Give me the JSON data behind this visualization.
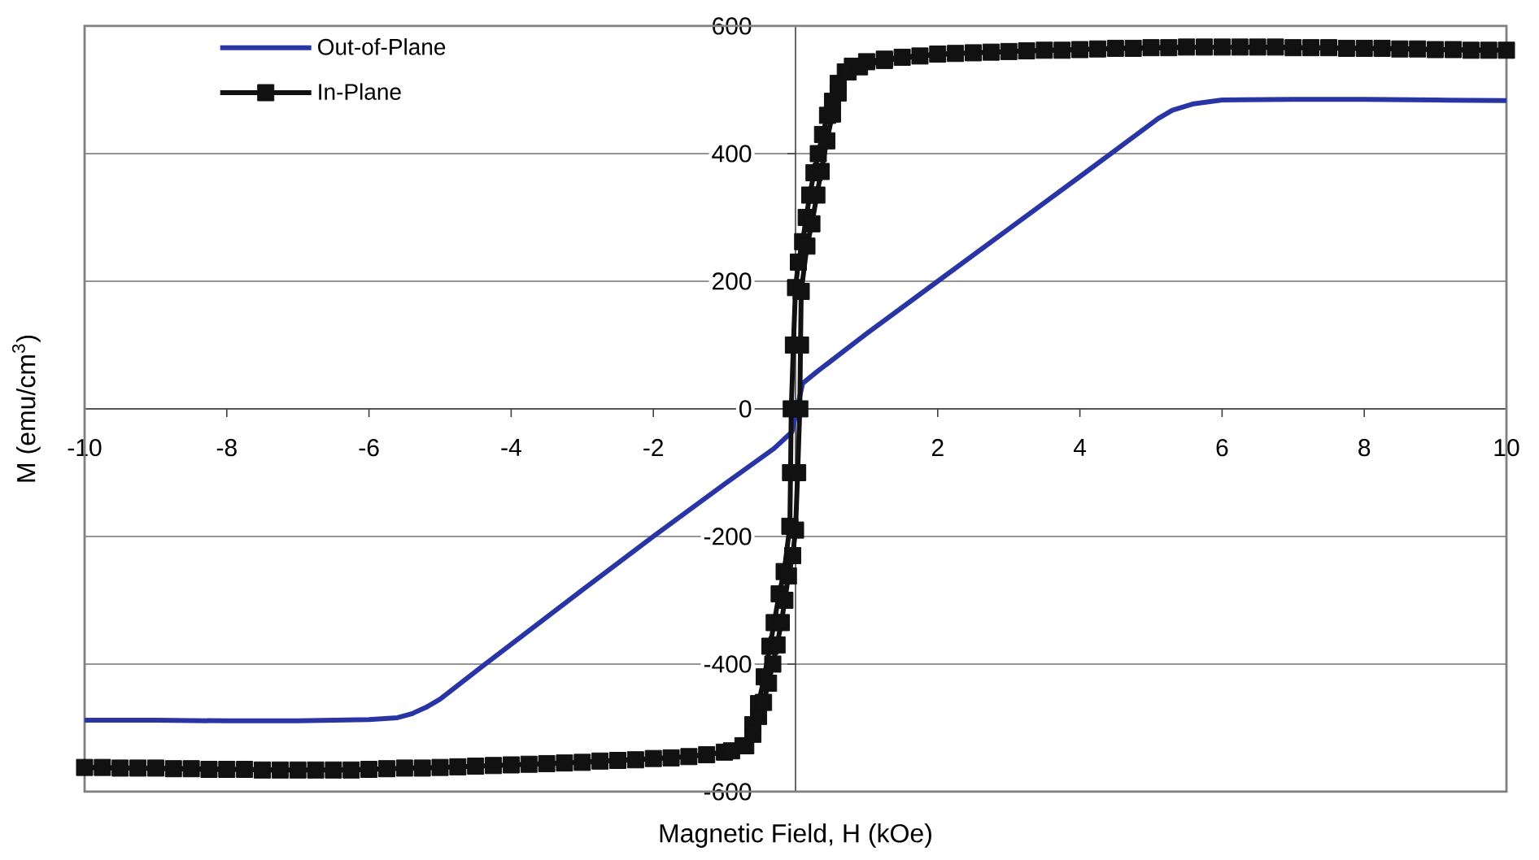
{
  "chart_data": {
    "type": "line",
    "xlabel": "Magnetic Field, H (kOe)",
    "ylabel": "M (emu/cm$^{3}$)",
    "xlim": [
      -10,
      10
    ],
    "ylim": [
      -600,
      600
    ],
    "xticks": [
      -10,
      -8,
      -6,
      -4,
      -2,
      2,
      4,
      6,
      8,
      10
    ],
    "yticks": [
      -600,
      -400,
      -200,
      0,
      200,
      400,
      600
    ],
    "grid": "y",
    "legend": "top left",
    "series": [
      {
        "name": "Out-of-Plane",
        "color": "#2a35a5",
        "marker": "none",
        "x": [
          -10,
          -9,
          -8,
          -7,
          -6,
          -5.6,
          -5.4,
          -5.2,
          -5,
          -4.4,
          -3,
          -2,
          -1,
          -0.3,
          -0.05,
          0.1,
          0.3,
          1,
          2,
          3,
          4,
          4.8,
          5.1,
          5.3,
          5.6,
          6,
          7,
          8,
          9,
          10
        ],
        "values": [
          -488,
          -488,
          -489,
          -489,
          -487,
          -484,
          -478,
          -468,
          -455,
          -403,
          -284,
          -200,
          -118,
          -62,
          -36,
          40,
          58,
          118,
          200,
          282,
          364,
          430,
          455,
          468,
          478,
          484,
          485,
          485,
          484,
          483
        ]
      },
      {
        "name": "In-Plane",
        "color": "#111111",
        "marker": "square",
        "x": [
          10,
          9.5,
          9,
          8.5,
          8,
          7.5,
          7,
          6.5,
          6,
          5.5,
          5,
          4.5,
          4,
          3.5,
          3,
          2.5,
          2,
          1.5,
          1.25,
          1,
          0.8,
          0.7,
          0.6,
          0.52,
          0.45,
          0.38,
          0.32,
          0.26,
          0.2,
          0.15,
          0.1,
          0.04,
          0,
          -0.03,
          -0.06,
          -0.07,
          -0.08,
          -0.16,
          -0.23,
          -0.3,
          -0.36,
          -0.44,
          -0.52,
          -0.6,
          -0.74,
          -1,
          -1.5,
          -2,
          -2.5,
          -3,
          -3.5,
          -4,
          -4.5,
          -5,
          -5.5,
          -6,
          -6.5,
          -7,
          -7.5,
          -8,
          -8.5,
          -9,
          -9.5,
          -10,
          -9.75,
          -9.25,
          -8.75,
          -8.25,
          -7.75,
          -7.25,
          -6.75,
          -6.25,
          -5.75,
          -5.25,
          -4.75,
          -4.25,
          -3.75,
          -3.25,
          -2.75,
          -2.25,
          -1.75,
          -1.25,
          -0.9,
          -0.7,
          -0.6,
          -0.52,
          -0.45,
          -0.38,
          -0.32,
          -0.26,
          -0.2,
          -0.15,
          -0.1,
          -0.04,
          0,
          0.03,
          0.06,
          0.07,
          0.08,
          0.16,
          0.23,
          0.3,
          0.36,
          0.44,
          0.52,
          0.6,
          0.74,
          0.9,
          1.25,
          1.75,
          2.25,
          2.75,
          3.25,
          3.75,
          4.25,
          4.75,
          5.25,
          5.75,
          6.25,
          6.75,
          7.25,
          7.75,
          8.25,
          8.75,
          9.25,
          9.75
        ],
        "values": [
          562,
          562,
          563,
          564,
          565,
          566,
          566,
          567,
          567,
          567,
          566,
          565,
          563,
          562,
          560,
          558,
          556,
          551,
          548,
          544,
          537,
          528,
          510,
          482,
          460,
          430,
          400,
          370,
          335,
          300,
          262,
          230,
          190,
          100,
          0,
          -100,
          -184,
          -255,
          -290,
          -335,
          -372,
          -420,
          -462,
          -495,
          -528,
          -538,
          -545,
          -548,
          -551,
          -554,
          -556,
          -558,
          -560,
          -562,
          -563,
          -565,
          -566,
          -566,
          -566,
          -565,
          -564,
          -563,
          -563,
          -562,
          -562,
          -563,
          -564,
          -565,
          -565,
          -566,
          -566,
          -566,
          -564,
          -563,
          -561,
          -559,
          -557,
          -555,
          -552,
          -550,
          -547,
          -542,
          -536,
          -528,
          -510,
          -482,
          -460,
          -430,
          -400,
          -370,
          -335,
          -300,
          -262,
          -230,
          -190,
          -100,
          0,
          100,
          184,
          255,
          290,
          335,
          372,
          420,
          462,
          495,
          528,
          536,
          546,
          553,
          557,
          559,
          561,
          562,
          564,
          565,
          566,
          567,
          567,
          567,
          566,
          565,
          565,
          564,
          563,
          562
        ]
      }
    ]
  }
}
